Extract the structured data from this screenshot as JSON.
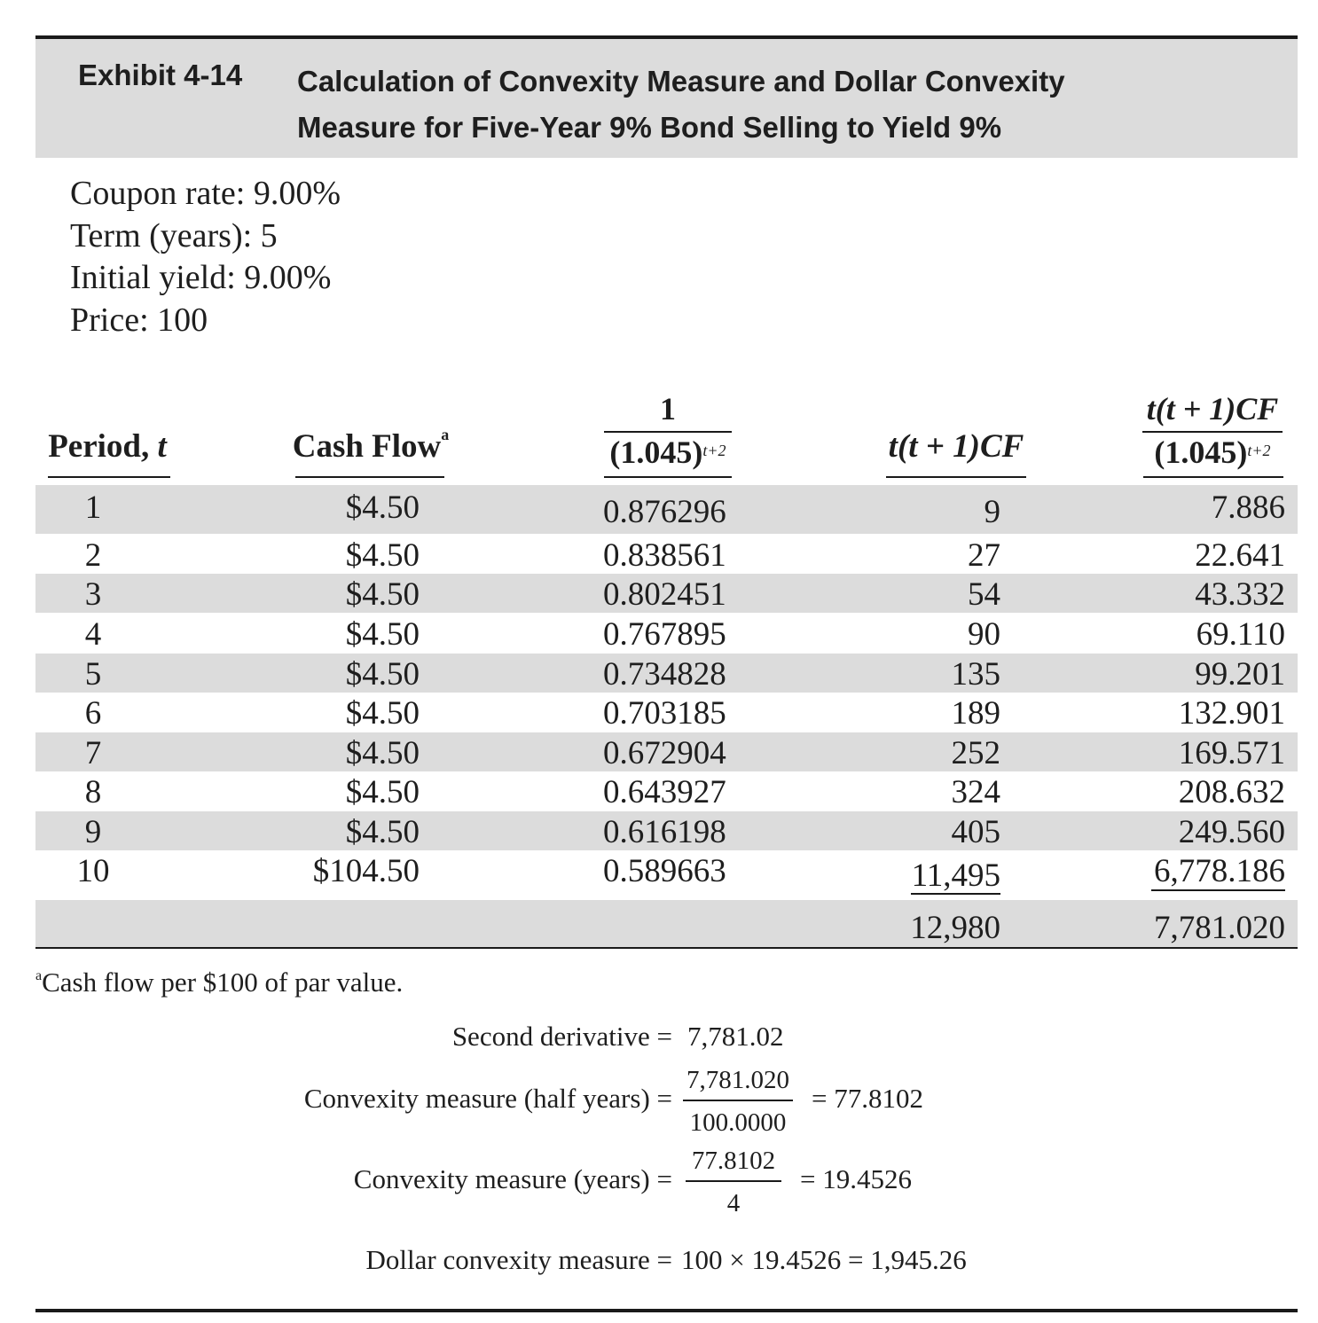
{
  "exhibit": {
    "label": "Exhibit 4-14",
    "title_line1": "Calculation of Convexity Measure and Dollar Convexity",
    "title_line2": "Measure for Five-Year 9% Bond Selling to Yield 9%"
  },
  "parameters": [
    "Coupon rate: 9.00%",
    "Term (years): 5",
    "Initial yield: 9.00%",
    "Price: 100"
  ],
  "table": {
    "headers": {
      "period": "Period,",
      "period_var": "t",
      "cash_flow": "Cash Flow",
      "cash_flow_note": "a",
      "discount_num": "1",
      "discount_den": "(1.045)",
      "discount_exp": "t+2",
      "tt1cf": "t(t + 1)CF",
      "pv_num": "t(t + 1)CF",
      "pv_den": "(1.045)",
      "pv_exp": "t+2"
    },
    "rows": [
      {
        "period": "1",
        "cash_flow": "$4.50",
        "discount": "0.876296",
        "tt1cf": "9",
        "pv": "7.886"
      },
      {
        "period": "2",
        "cash_flow": "$4.50",
        "discount": "0.838561",
        "tt1cf": "27",
        "pv": "22.641"
      },
      {
        "period": "3",
        "cash_flow": "$4.50",
        "discount": "0.802451",
        "tt1cf": "54",
        "pv": "43.332"
      },
      {
        "period": "4",
        "cash_flow": "$4.50",
        "discount": "0.767895",
        "tt1cf": "90",
        "pv": "69.110"
      },
      {
        "period": "5",
        "cash_flow": "$4.50",
        "discount": "0.734828",
        "tt1cf": "135",
        "pv": "99.201"
      },
      {
        "period": "6",
        "cash_flow": "$4.50",
        "discount": "0.703185",
        "tt1cf": "189",
        "pv": "132.901"
      },
      {
        "period": "7",
        "cash_flow": "$4.50",
        "discount": "0.672904",
        "tt1cf": "252",
        "pv": "169.571"
      },
      {
        "period": "8",
        "cash_flow": "$4.50",
        "discount": "0.643927",
        "tt1cf": "324",
        "pv": "208.632"
      },
      {
        "period": "9",
        "cash_flow": "$4.50",
        "discount": "0.616198",
        "tt1cf": "405",
        "pv": "249.560"
      },
      {
        "period": "10",
        "cash_flow": "$104.50",
        "discount": "0.589663",
        "tt1cf": "11,495",
        "pv": "6,778.186"
      }
    ],
    "totals": {
      "tt1cf": "12,980",
      "pv": "7,781.020"
    }
  },
  "footnote": {
    "marker": "a",
    "text": "Cash flow per $100 of par value."
  },
  "calculations": {
    "second_derivative": {
      "label": "Second derivative =",
      "value": "7,781.02"
    },
    "convexity_half_years": {
      "label": "Convexity measure (half years) =",
      "numerator": "7,781.020",
      "denominator": "100.0000",
      "result": "= 77.8102"
    },
    "convexity_years": {
      "label": "Convexity measure (years) =",
      "numerator": "77.8102",
      "denominator": "4",
      "result": "= 19.4526"
    },
    "dollar_convexity": {
      "label": "Dollar convexity measure =",
      "expression": "100 × 19.4526 = 1,945.26"
    }
  }
}
